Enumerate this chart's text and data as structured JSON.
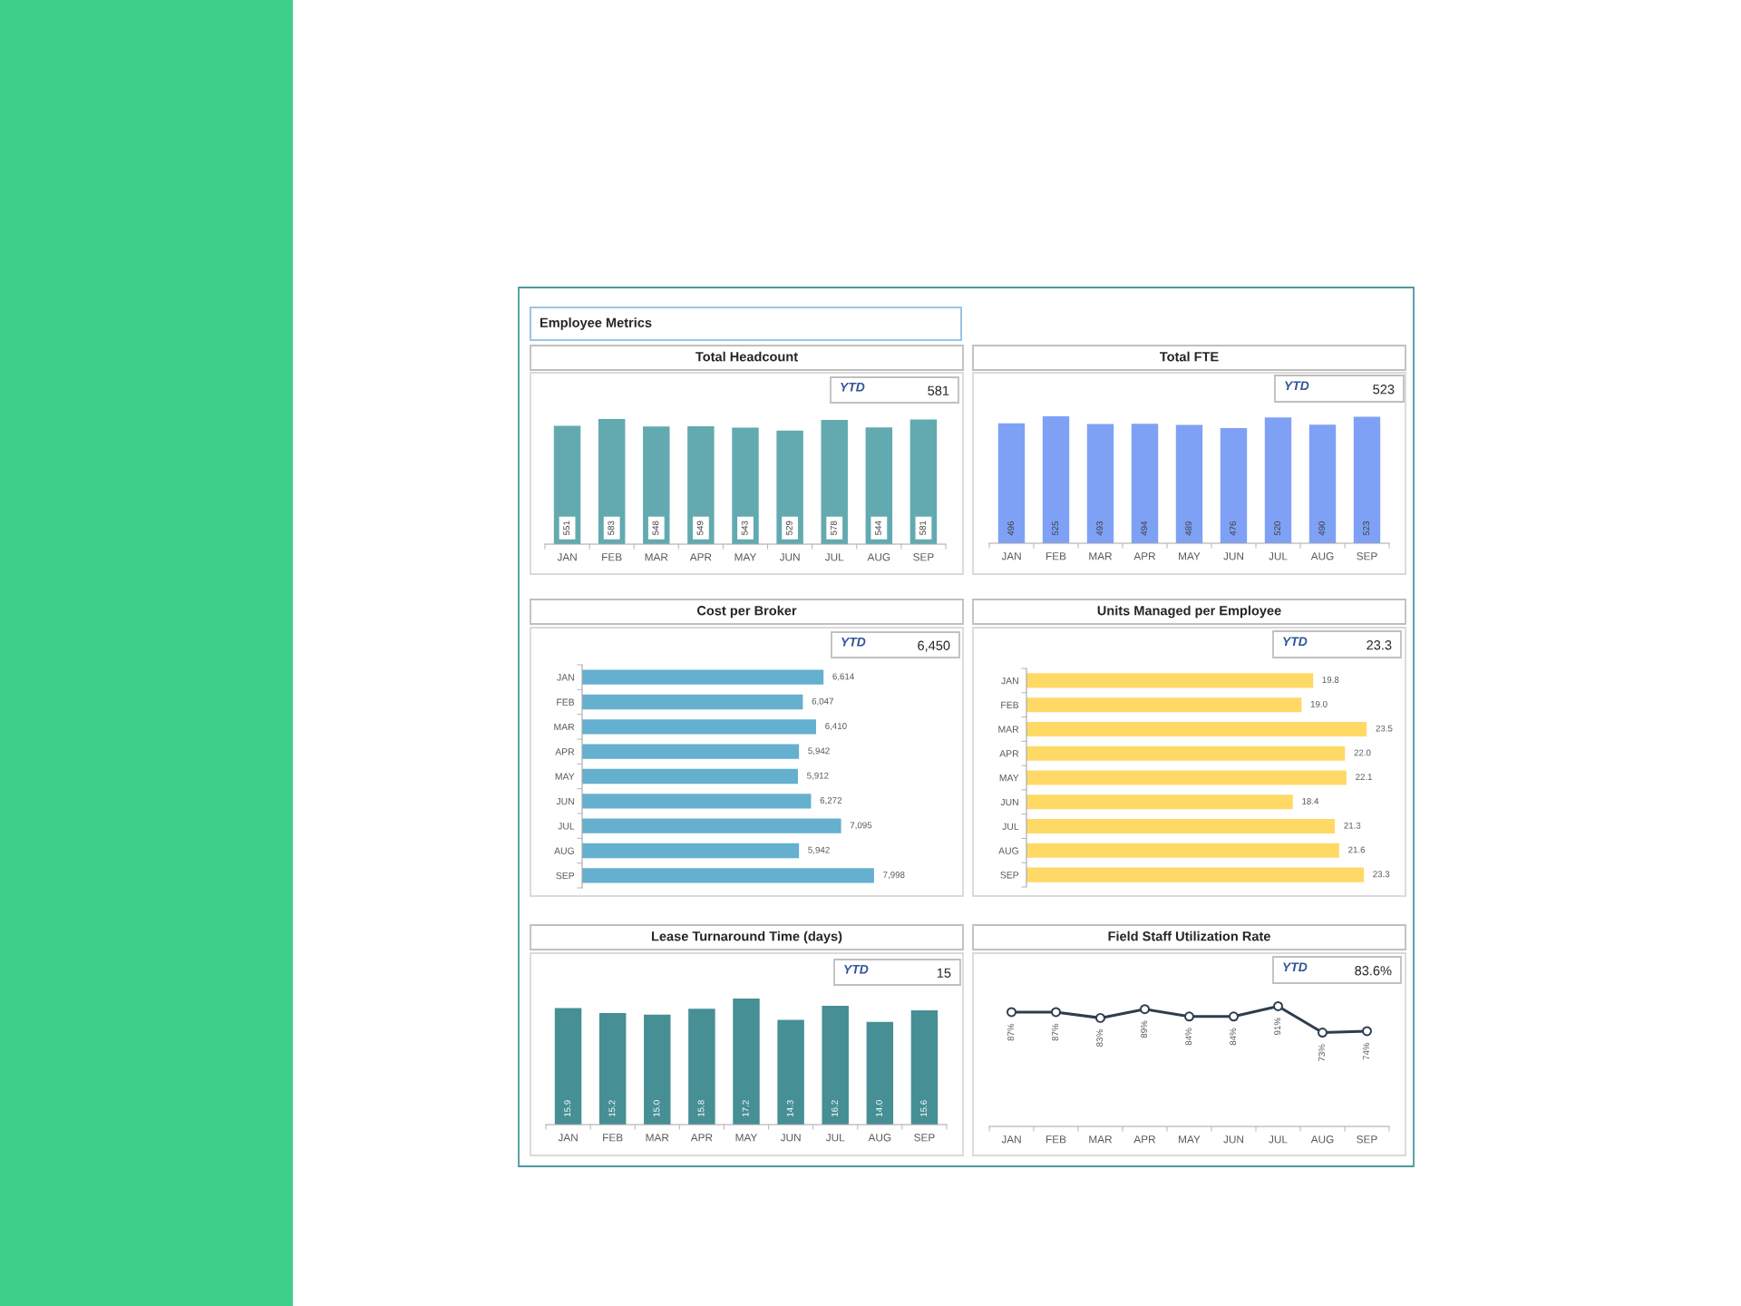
{
  "chart_data": [
    {
      "type": "other",
      "title": "Employee Metrics"
    },
    {
      "type": "bar",
      "title": "Total Headcount",
      "categories": [
        "JAN",
        "FEB",
        "MAR",
        "APR",
        "MAY",
        "JUN",
        "JUL",
        "AUG",
        "SEP"
      ],
      "values": [
        551,
        583,
        548,
        549,
        543,
        529,
        578,
        544,
        581
      ],
      "color": "#62aab0",
      "tick_labels": "x",
      "data_labels": true,
      "annotations": [
        "YTD",
        "581"
      ]
    },
    {
      "type": "bar",
      "title": "Total FTE",
      "categories": [
        "JAN",
        "FEB",
        "MAR",
        "APR",
        "MAY",
        "JUN",
        "JUL",
        "AUG",
        "SEP"
      ],
      "values": [
        496,
        525,
        493,
        494,
        489,
        476,
        520,
        490,
        523
      ],
      "color": "#7fa1f5",
      "tick_labels": "x",
      "data_labels": true,
      "annotations": [
        "YTD",
        "523"
      ]
    },
    {
      "type": "bar",
      "orientation": "horizontal",
      "title": "Cost per Broker",
      "categories": [
        "JAN",
        "FEB",
        "MAR",
        "APR",
        "MAY",
        "JUN",
        "JUL",
        "AUG",
        "SEP"
      ],
      "values": [
        6614,
        6047,
        6410,
        5942,
        5912,
        6272,
        7095,
        5942,
        7998
      ],
      "value_labels": [
        "6,614",
        "6,047",
        "6,410",
        "5,942",
        "5,912",
        "6,272",
        "7,095",
        "5,942",
        "7,998"
      ],
      "color": "#65afcf",
      "tick_labels": "y",
      "annotations": [
        "YTD",
        "6,450"
      ]
    },
    {
      "type": "bar",
      "orientation": "horizontal",
      "title": "Units Managed per Employee",
      "categories": [
        "JAN",
        "FEB",
        "MAR",
        "APR",
        "MAY",
        "JUN",
        "JUL",
        "AUG",
        "SEP"
      ],
      "values": [
        19.8,
        19.0,
        23.5,
        22.0,
        22.1,
        18.4,
        21.3,
        21.6,
        23.3
      ],
      "value_labels": [
        "19.8",
        "19.0",
        "23.5",
        "22.0",
        "22.1",
        "18.4",
        "21.3",
        "21.6",
        "23.3"
      ],
      "color": "#ffd966",
      "tick_labels": "y",
      "annotations": [
        "YTD",
        "23.3"
      ]
    },
    {
      "type": "bar",
      "title": "Lease Turnaround Time (days)",
      "categories": [
        "JAN",
        "FEB",
        "MAR",
        "APR",
        "MAY",
        "JUN",
        "JUL",
        "AUG",
        "SEP"
      ],
      "values": [
        15.9,
        15.2,
        15.0,
        15.8,
        17.2,
        14.3,
        16.2,
        14.0,
        15.6
      ],
      "value_labels": [
        "15.9",
        "15.2",
        "15.0",
        "15.8",
        "17.2",
        "14.3",
        "16.2",
        "14.0",
        "15.6"
      ],
      "color": "#458f95",
      "tick_labels": "x",
      "annotations": [
        "YTD",
        "15"
      ]
    },
    {
      "type": "line",
      "title": "Field Staff Utilization Rate",
      "categories": [
        "JAN",
        "FEB",
        "MAR",
        "APR",
        "MAY",
        "JUN",
        "JUL",
        "AUG",
        "SEP"
      ],
      "values": [
        87,
        87,
        83,
        89,
        84,
        84,
        91,
        73,
        74
      ],
      "value_labels": [
        "87%",
        "87%",
        "83%",
        "89%",
        "84%",
        "84%",
        "91%",
        "73%",
        "74%"
      ],
      "color": "#2e3d50",
      "marker": "circle",
      "line_style": "solid",
      "tick_labels": "x",
      "annotations": [
        "YTD",
        "83.6%"
      ]
    }
  ]
}
